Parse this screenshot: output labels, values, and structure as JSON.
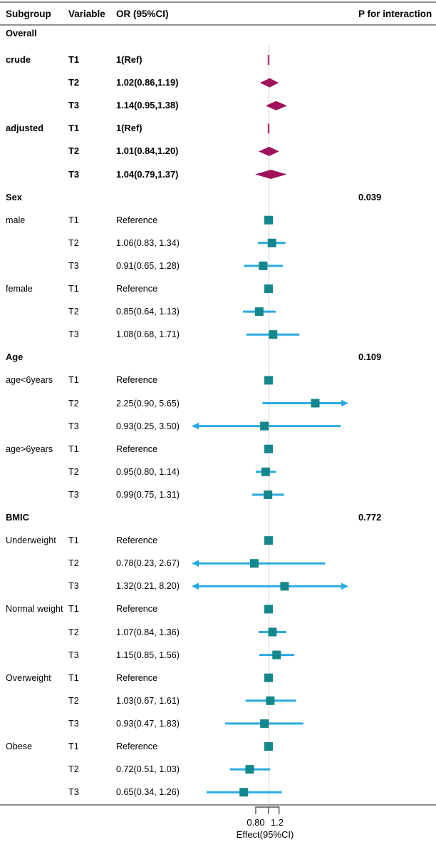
{
  "header": {
    "subgroup": "Subgroup",
    "variable": "Variable",
    "or": "OR (95%CI)",
    "p": "P for interaction"
  },
  "colors": {
    "diamond": "#a0135c",
    "square": "#13878d",
    "ci_line": "#29abe2",
    "ref_line": "#cfcfcf",
    "rule": "#8f8f8f",
    "axis": "#333333"
  },
  "chart_data": {
    "type": "forest",
    "scale": "log",
    "ref_value": 1.0,
    "axis": {
      "tick_labels": [
        "0.80",
        "1.2"
      ],
      "tick_values": [
        0.8,
        1.2
      ],
      "label": "Effect(95%CI)",
      "visible_range": [
        0.27,
        3.95
      ]
    },
    "rows": [
      {
        "subgroup": "Overall",
        "variable": "",
        "or": "",
        "p": "",
        "bold": true,
        "marker": null
      },
      {
        "subgroup": "crude",
        "variable": "T1",
        "or": "1(Ref)",
        "p": "",
        "bold": true,
        "marker": "ref_tick",
        "est": 1
      },
      {
        "subgroup": "",
        "variable": "T2",
        "or": "1.02(0.86,1.19)",
        "p": "",
        "bold": true,
        "marker": "diamond",
        "est": 1.02,
        "lo": 0.86,
        "hi": 1.19
      },
      {
        "subgroup": "",
        "variable": "T3",
        "or": "1.14(0.95,1.38)",
        "p": "",
        "bold": true,
        "marker": "diamond",
        "est": 1.14,
        "lo": 0.95,
        "hi": 1.38
      },
      {
        "subgroup": "adjusted",
        "variable": "T1",
        "or": "1(Ref)",
        "p": "",
        "bold": true,
        "marker": "ref_tick",
        "est": 1
      },
      {
        "subgroup": "",
        "variable": "T2",
        "or": "1.01(0.84,1.20)",
        "p": "",
        "bold": true,
        "marker": "diamond",
        "est": 1.01,
        "lo": 0.84,
        "hi": 1.2
      },
      {
        "subgroup": "",
        "variable": "T3",
        "or": "1.04(0.79,1.37)",
        "p": "",
        "bold": true,
        "marker": "diamond",
        "est": 1.04,
        "lo": 0.79,
        "hi": 1.37
      },
      {
        "subgroup": "Sex",
        "variable": "",
        "or": "",
        "p": "0.039",
        "bold": true,
        "marker": null
      },
      {
        "subgroup": "male",
        "variable": "T1",
        "or": "Reference",
        "p": "",
        "bold": false,
        "marker": "ref_square",
        "est": 1
      },
      {
        "subgroup": "",
        "variable": "T2",
        "or": "1.06(0.83, 1.34)",
        "p": "",
        "bold": false,
        "marker": "square",
        "est": 1.06,
        "lo": 0.83,
        "hi": 1.34
      },
      {
        "subgroup": "",
        "variable": "T3",
        "or": "0.91(0.65, 1.28)",
        "p": "",
        "bold": false,
        "marker": "square",
        "est": 0.91,
        "lo": 0.65,
        "hi": 1.28
      },
      {
        "subgroup": "female",
        "variable": "T1",
        "or": "Reference",
        "p": "",
        "bold": false,
        "marker": "ref_square",
        "est": 1
      },
      {
        "subgroup": "",
        "variable": "T2",
        "or": "0.85(0.64, 1.13)",
        "p": "",
        "bold": false,
        "marker": "square",
        "est": 0.85,
        "lo": 0.64,
        "hi": 1.13
      },
      {
        "subgroup": "",
        "variable": "T3",
        "or": "1.08(0.68, 1.71)",
        "p": "",
        "bold": false,
        "marker": "square",
        "est": 1.08,
        "lo": 0.68,
        "hi": 1.71
      },
      {
        "subgroup": "Age",
        "variable": "",
        "or": "",
        "p": "0.109",
        "bold": true,
        "marker": null
      },
      {
        "subgroup": "age<6years",
        "variable": "T1",
        "or": "Reference",
        "p": "",
        "bold": false,
        "marker": "ref_square",
        "est": 1
      },
      {
        "subgroup": "",
        "variable": "T2",
        "or": "2.25(0.90, 5.65)",
        "p": "",
        "bold": false,
        "marker": "square",
        "est": 2.25,
        "lo": 0.9,
        "hi": 5.65
      },
      {
        "subgroup": "",
        "variable": "T3",
        "or": "0.93(0.25, 3.50)",
        "p": "",
        "bold": false,
        "marker": "square",
        "est": 0.93,
        "lo": 0.25,
        "hi": 3.5
      },
      {
        "subgroup": "age>6years",
        "variable": "T1",
        "or": "Reference",
        "p": "",
        "bold": false,
        "marker": "ref_square",
        "est": 1
      },
      {
        "subgroup": "",
        "variable": "T2",
        "or": "0.95(0.80, 1.14)",
        "p": "",
        "bold": false,
        "marker": "square",
        "est": 0.95,
        "lo": 0.8,
        "hi": 1.14
      },
      {
        "subgroup": "",
        "variable": "T3",
        "or": "0.99(0.75, 1.31)",
        "p": "",
        "bold": false,
        "marker": "square",
        "est": 0.99,
        "lo": 0.75,
        "hi": 1.31
      },
      {
        "subgroup": "BMIC",
        "variable": "",
        "or": "",
        "p": "0.772",
        "bold": true,
        "marker": null
      },
      {
        "subgroup": "Underweight",
        "variable": "T1",
        "or": "Reference",
        "p": "",
        "bold": false,
        "marker": "ref_square",
        "est": 1
      },
      {
        "subgroup": "",
        "variable": "T2",
        "or": "0.78(0.23, 2.67)",
        "p": "",
        "bold": false,
        "marker": "square",
        "est": 0.78,
        "lo": 0.23,
        "hi": 2.67
      },
      {
        "subgroup": "",
        "variable": "T3",
        "or": "1.32(0.21, 8.20)",
        "p": "",
        "bold": false,
        "marker": "square",
        "est": 1.32,
        "lo": 0.21,
        "hi": 8.2
      },
      {
        "subgroup": "Normal weight",
        "variable": "T1",
        "or": "Reference",
        "p": "",
        "bold": false,
        "marker": "ref_square",
        "est": 1
      },
      {
        "subgroup": "",
        "variable": "T2",
        "or": "1.07(0.84, 1.36)",
        "p": "",
        "bold": false,
        "marker": "square",
        "est": 1.07,
        "lo": 0.84,
        "hi": 1.36
      },
      {
        "subgroup": "",
        "variable": "T3",
        "or": "1.15(0.85, 1.56)",
        "p": "",
        "bold": false,
        "marker": "square",
        "est": 1.15,
        "lo": 0.85,
        "hi": 1.56
      },
      {
        "subgroup": "Overweight",
        "variable": "T1",
        "or": "Reference",
        "p": "",
        "bold": false,
        "marker": "ref_square",
        "est": 1
      },
      {
        "subgroup": "",
        "variable": "T2",
        "or": "1.03(0.67, 1.61)",
        "p": "",
        "bold": false,
        "marker": "square",
        "est": 1.03,
        "lo": 0.67,
        "hi": 1.61
      },
      {
        "subgroup": "",
        "variable": "T3",
        "or": "0.93(0.47, 1.83)",
        "p": "",
        "bold": false,
        "marker": "square",
        "est": 0.93,
        "lo": 0.47,
        "hi": 1.83
      },
      {
        "subgroup": "Obese",
        "variable": "T1",
        "or": "Reference",
        "p": "",
        "bold": false,
        "marker": "ref_square",
        "est": 1
      },
      {
        "subgroup": "",
        "variable": "T2",
        "or": "0.72(0.51, 1.03)",
        "p": "",
        "bold": false,
        "marker": "square",
        "est": 0.72,
        "lo": 0.51,
        "hi": 1.03
      },
      {
        "subgroup": "",
        "variable": "T3",
        "or": "0.65(0.34, 1.26)",
        "p": "",
        "bold": false,
        "marker": "square",
        "est": 0.65,
        "lo": 0.34,
        "hi": 1.26
      }
    ]
  }
}
